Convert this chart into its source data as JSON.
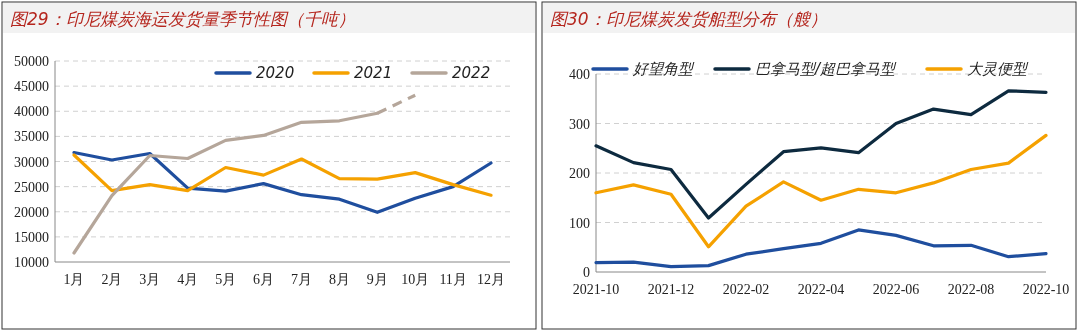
{
  "chart_data": [
    {
      "type": "line",
      "title": "图29：印尼煤炭海运发货量季节性图（千吨）",
      "categories": [
        "1月",
        "2月",
        "3月",
        "4月",
        "5月",
        "6月",
        "7月",
        "8月",
        "9月",
        "10月",
        "11月",
        "12月"
      ],
      "series": [
        {
          "name": "2020",
          "color": "#1f4e9e",
          "values": [
            31800,
            30300,
            31600,
            24700,
            24100,
            25600,
            23400,
            22500,
            19900,
            22700,
            25000,
            29700
          ]
        },
        {
          "name": "2021",
          "color": "#f5a100",
          "values": [
            31300,
            24200,
            25400,
            24200,
            28800,
            27300,
            30500,
            26600,
            26500,
            27800,
            25400,
            23300
          ]
        },
        {
          "name": "2022",
          "color": "#b5a69a",
          "values": [
            11800,
            23200,
            31200,
            30600,
            34200,
            35200,
            37800,
            38100,
            39600,
            null,
            null,
            null
          ]
        },
        {
          "color": "#b5a69a",
          "line_style": "dashed",
          "values": [
            null,
            null,
            null,
            null,
            null,
            null,
            null,
            null,
            39600,
            43200,
            null,
            null
          ]
        }
      ],
      "ylim": [
        10000,
        50000
      ],
      "yticks": [
        10000,
        15000,
        20000,
        25000,
        30000,
        35000,
        40000,
        45000,
        50000
      ],
      "grid": "y",
      "legend": "top right"
    },
    {
      "type": "line",
      "title": "图30：印尼煤炭发货船型分布（艘）",
      "categories": [
        "2021-10",
        null,
        "2021-12",
        null,
        "2022-02",
        null,
        "2022-04",
        null,
        "2022-06",
        null,
        "2022-08",
        null,
        "2022-10"
      ],
      "series": [
        {
          "name": "好望角型",
          "color": "#1f4e9e",
          "values": [
            19,
            20,
            11,
            13,
            36,
            47,
            58,
            85,
            74,
            53,
            54,
            31,
            37
          ]
        },
        {
          "name": "巴拿马型/超巴拿马型",
          "color": "#0d2a3f",
          "values": [
            255,
            221,
            207,
            109,
            177,
            243,
            251,
            241,
            300,
            329,
            318,
            366,
            363
          ]
        },
        {
          "name": "大灵便型",
          "color": "#f5a100",
          "values": [
            160,
            176,
            157,
            51,
            133,
            182,
            145,
            167,
            160,
            180,
            207,
            220,
            276
          ]
        }
      ],
      "ylim": [
        0,
        400
      ],
      "yticks": [
        0,
        100,
        200,
        300,
        400
      ],
      "grid": "y",
      "legend": "top"
    }
  ]
}
